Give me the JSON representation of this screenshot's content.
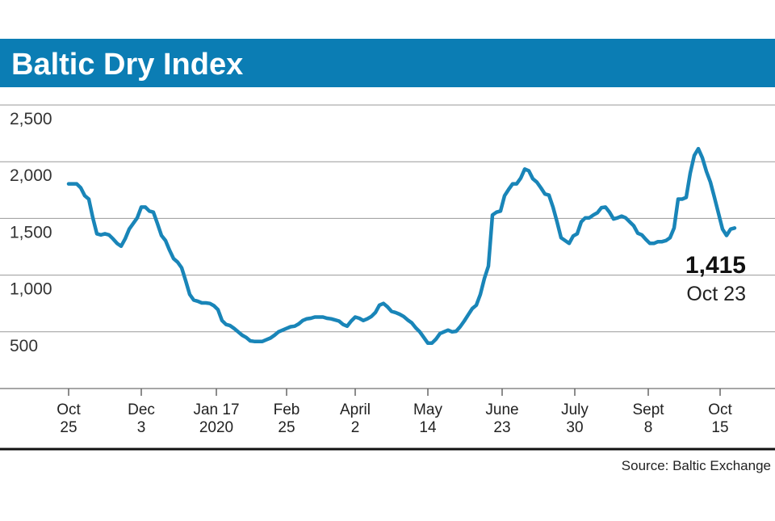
{
  "chart_data": {
    "type": "line",
    "title": "Baltic Dry Index",
    "source": "Source: Baltic Exchange",
    "color": "#1985b8",
    "grid": true,
    "ylim": [
      0,
      2500
    ],
    "yticks": [
      {
        "value": 500,
        "label": "500"
      },
      {
        "value": 1000,
        "label": "1,000"
      },
      {
        "value": 1500,
        "label": "1,500"
      },
      {
        "value": 2000,
        "label": "2,000"
      },
      {
        "value": 2500,
        "label": "2,500"
      }
    ],
    "xlim": [
      -17,
      175
    ],
    "xticks": [
      {
        "value": 0,
        "label": [
          "Oct",
          "25"
        ]
      },
      {
        "value": 18,
        "label": [
          "Dec",
          "3"
        ]
      },
      {
        "value": 36.6,
        "label": [
          "Jan 17",
          "2020"
        ]
      },
      {
        "value": 54,
        "label": [
          "Feb",
          "25"
        ]
      },
      {
        "value": 71,
        "label": [
          "April",
          "2"
        ]
      },
      {
        "value": 89,
        "label": [
          "May",
          "14"
        ]
      },
      {
        "value": 107.4,
        "label": [
          "June",
          "23"
        ]
      },
      {
        "value": 125.4,
        "label": [
          "July",
          "30"
        ]
      },
      {
        "value": 143.6,
        "label": [
          "Sept",
          "8"
        ]
      },
      {
        "value": 161.4,
        "label": [
          "Oct",
          "15"
        ]
      }
    ],
    "values": [
      1805,
      1805,
      1805,
      1770,
      1700,
      1670,
      1505,
      1365,
      1355,
      1365,
      1355,
      1320,
      1280,
      1255,
      1320,
      1405,
      1455,
      1505,
      1600,
      1600,
      1565,
      1555,
      1455,
      1350,
      1305,
      1220,
      1145,
      1115,
      1065,
      950,
      830,
      780,
      770,
      755,
      755,
      750,
      730,
      695,
      600,
      565,
      555,
      530,
      500,
      470,
      450,
      420,
      415,
      415,
      415,
      430,
      445,
      470,
      500,
      515,
      530,
      545,
      550,
      570,
      600,
      615,
      620,
      630,
      630,
      630,
      620,
      615,
      605,
      595,
      565,
      550,
      595,
      630,
      620,
      600,
      615,
      635,
      670,
      735,
      750,
      720,
      680,
      670,
      655,
      635,
      605,
      580,
      535,
      500,
      450,
      400,
      400,
      435,
      485,
      500,
      515,
      500,
      505,
      545,
      595,
      650,
      705,
      735,
      830,
      970,
      1080,
      1530,
      1555,
      1565,
      1700,
      1755,
      1805,
      1805,
      1855,
      1935,
      1920,
      1850,
      1820,
      1770,
      1715,
      1705,
      1600,
      1470,
      1330,
      1305,
      1280,
      1345,
      1365,
      1470,
      1505,
      1505,
      1530,
      1550,
      1595,
      1600,
      1555,
      1495,
      1505,
      1520,
      1505,
      1470,
      1435,
      1370,
      1355,
      1315,
      1280,
      1280,
      1295,
      1295,
      1305,
      1330,
      1415,
      1670,
      1670,
      1685,
      1900,
      2055,
      2115,
      2035,
      1915,
      1820,
      1685,
      1545,
      1405,
      1350,
      1405,
      1415
    ],
    "annotation": {
      "label": "1,415",
      "date": "Oct 23"
    }
  }
}
